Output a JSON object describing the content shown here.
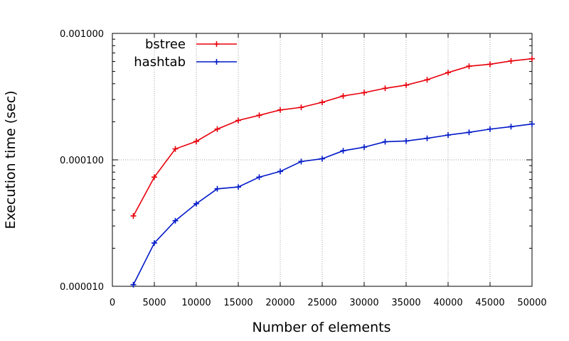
{
  "chart_data": {
    "type": "line",
    "xlabel": "Number of elements",
    "ylabel": "Execution time (sec)",
    "xlim": [
      0,
      50000
    ],
    "ylim": [
      1e-05,
      0.001
    ],
    "yscale": "log",
    "grid": true,
    "legend_position": "top-left",
    "x_ticks": [
      0,
      5000,
      10000,
      15000,
      20000,
      25000,
      30000,
      35000,
      40000,
      45000,
      50000
    ],
    "x_tick_labels": [
      "0",
      "5000",
      "10000",
      "15000",
      "20000",
      "25000",
      "30000",
      "35000",
      "40000",
      "45000",
      "50000"
    ],
    "y_ticks": [
      1e-05,
      0.0001,
      0.001
    ],
    "y_tick_labels": [
      "0.000010",
      "0.000100",
      "0.001000"
    ],
    "x": [
      2500,
      5000,
      7500,
      10000,
      12500,
      15000,
      17500,
      20000,
      22500,
      25000,
      27500,
      30000,
      32500,
      35000,
      37500,
      40000,
      42500,
      45000,
      47500,
      50000
    ],
    "series": [
      {
        "name": "bstree",
        "color": "#e8000b",
        "values": [
          3.6e-05,
          7.3e-05,
          0.000122,
          0.00014,
          0.000175,
          0.000205,
          0.000225,
          0.000248,
          0.00026,
          0.000285,
          0.00032,
          0.00034,
          0.000368,
          0.00039,
          0.00043,
          0.00049,
          0.00055,
          0.00057,
          0.000605,
          0.00063
        ]
      },
      {
        "name": "hashtab",
        "color": "#0018c8",
        "values": [
          1.03e-05,
          2.2e-05,
          3.3e-05,
          4.5e-05,
          5.9e-05,
          6.1e-05,
          7.3e-05,
          8.1e-05,
          9.7e-05,
          0.000102,
          0.000118,
          0.000126,
          0.000139,
          0.000141,
          0.000148,
          0.000157,
          0.000165,
          0.000175,
          0.000183,
          0.000192
        ]
      }
    ]
  }
}
